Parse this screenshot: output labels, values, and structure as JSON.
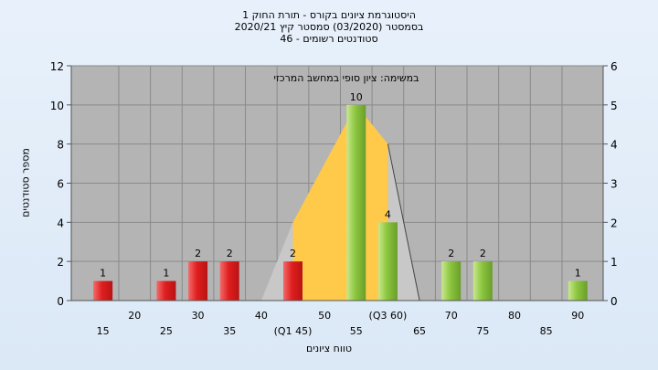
{
  "titles": {
    "line1": "היסטוגרמת ציונים בקורס - תורת החוק 1",
    "line2": "בסמסטר (03/2020) סמסטר קיץ 2020/21",
    "line3": "סטודנטים רשומים - 46"
  },
  "chart_data": {
    "type": "bar",
    "ylabel": "מספר סטודנטים",
    "xlabel": "טווח ציונים",
    "annotation": "במשימה: ציון סופי במחשב המרכזי",
    "ylim": [
      0,
      12
    ],
    "y2lim": [
      0,
      6
    ],
    "yticks": [
      0,
      2,
      4,
      6,
      8,
      10,
      12
    ],
    "y2ticks": [
      0,
      1,
      2,
      3,
      4,
      5,
      6
    ],
    "x_tick_labels": [
      "15",
      "20",
      "25",
      "30",
      "35",
      "40",
      "(Q1 45)",
      "50",
      "55",
      "(Q3 60)",
      "65",
      "70",
      "75",
      "80",
      "85",
      "90"
    ],
    "bars": [
      {
        "x": 15,
        "value": 1,
        "color": "red",
        "label": "1"
      },
      {
        "x": 25,
        "value": 1,
        "color": "red",
        "label": "1"
      },
      {
        "x": 30,
        "value": 2,
        "color": "red",
        "label": "2"
      },
      {
        "x": 35,
        "value": 2,
        "color": "red",
        "label": "2"
      },
      {
        "x": 45,
        "value": 2,
        "color": "red",
        "label": "2"
      },
      {
        "x": 55,
        "value": 10,
        "color": "green",
        "label": "10"
      },
      {
        "x": 60,
        "value": 4,
        "color": "green",
        "label": "4"
      },
      {
        "x": 70,
        "value": 2,
        "color": "green",
        "label": "2"
      },
      {
        "x": 75,
        "value": 2,
        "color": "green",
        "label": "2"
      },
      {
        "x": 90,
        "value": 1,
        "color": "green",
        "label": "1"
      }
    ],
    "distribution_curve": [
      {
        "x": 40,
        "y": 0
      },
      {
        "x": 45,
        "y": 4
      },
      {
        "x": 50,
        "y": 8
      },
      {
        "x": 55,
        "y": 10
      },
      {
        "x": 60,
        "y": 8
      },
      {
        "x": 65,
        "y": 0
      }
    ],
    "colors": {
      "plot_bg": "#b4b4b4",
      "grid": "#8a8a8a",
      "red_bar": "#e02424",
      "green_bar": "#8cc63f",
      "area_fill": "#ffc94a",
      "area_tail": "#c8c8c8"
    }
  }
}
